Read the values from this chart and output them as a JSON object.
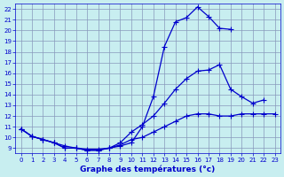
{
  "xlabel": "Graphe des températures (°c)",
  "bg_color": "#c8eef0",
  "grid_color": "#8899bb",
  "line_color": "#0000cc",
  "xlim": [
    -0.5,
    23.5
  ],
  "ylim": [
    8.5,
    22.5
  ],
  "xticks": [
    0,
    1,
    2,
    3,
    4,
    5,
    6,
    7,
    8,
    9,
    10,
    11,
    12,
    13,
    14,
    15,
    16,
    17,
    18,
    19,
    20,
    21,
    22,
    23
  ],
  "yticks": [
    9,
    10,
    11,
    12,
    13,
    14,
    15,
    16,
    17,
    18,
    19,
    20,
    21,
    22
  ],
  "series": [
    {
      "x": [
        0,
        1,
        2,
        3,
        4,
        5,
        6,
        7,
        8,
        9,
        10,
        11,
        12,
        13,
        14,
        15,
        16,
        17,
        18,
        19
      ],
      "y": [
        10.8,
        10.1,
        9.8,
        9.5,
        9.0,
        9.0,
        8.8,
        8.8,
        9.0,
        9.2,
        9.5,
        11.0,
        13.8,
        18.5,
        20.8,
        21.2,
        22.2,
        21.3,
        20.2,
        20.1
      ]
    },
    {
      "x": [
        0,
        1,
        2,
        3,
        4,
        5,
        6,
        7,
        8,
        9,
        10,
        11,
        12,
        13,
        14,
        15,
        16,
        17,
        18,
        19,
        20,
        21,
        22,
        23
      ],
      "y": [
        10.8,
        10.1,
        9.8,
        9.5,
        9.0,
        9.0,
        8.8,
        8.8,
        9.0,
        9.5,
        10.5,
        11.2,
        12.0,
        13.2,
        14.5,
        15.5,
        16.2,
        16.3,
        16.8,
        14.5,
        13.8,
        13.2,
        13.5,
        null
      ]
    },
    {
      "x": [
        0,
        1,
        2,
        3,
        4,
        5,
        6,
        7,
        8,
        9,
        10,
        11,
        12,
        13,
        14,
        15,
        16,
        17,
        18,
        19,
        20,
        21,
        22,
        23
      ],
      "y": [
        10.8,
        10.1,
        9.8,
        9.5,
        9.2,
        9.0,
        8.9,
        8.9,
        9.0,
        9.3,
        9.8,
        10.0,
        10.5,
        11.0,
        11.5,
        12.0,
        12.2,
        12.2,
        12.0,
        12.0,
        12.2,
        12.2,
        12.2,
        12.2
      ]
    }
  ]
}
